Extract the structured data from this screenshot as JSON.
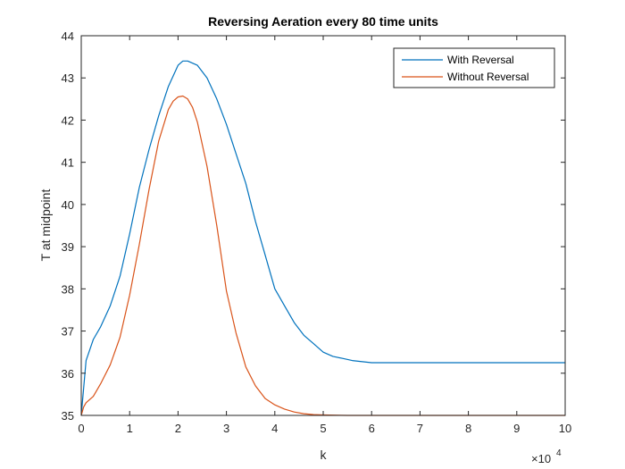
{
  "chart_data": {
    "type": "line",
    "title": "Reversing Aeration every 80 time units",
    "xlabel": "k",
    "ylabel": "T at midpoint",
    "x_exponent_base": "×10",
    "x_exponent_power": "4",
    "xlim": [
      0,
      100000
    ],
    "ylim": [
      35,
      44
    ],
    "xticks": [
      0,
      10000,
      20000,
      30000,
      40000,
      50000,
      60000,
      70000,
      80000,
      90000,
      100000
    ],
    "xtick_labels": [
      "0",
      "1",
      "2",
      "3",
      "4",
      "5",
      "6",
      "7",
      "8",
      "9",
      "10"
    ],
    "yticks": [
      35,
      36,
      37,
      38,
      39,
      40,
      41,
      42,
      43,
      44
    ],
    "ytick_labels": [
      "35",
      "36",
      "37",
      "38",
      "39",
      "40",
      "41",
      "42",
      "43",
      "44"
    ],
    "grid": false,
    "legend_position": "top-right",
    "series": [
      {
        "name": "With Reversal",
        "color": "#0072BD",
        "x": [
          0,
          1000,
          2500,
          4000,
          6000,
          8000,
          10000,
          12000,
          14000,
          16000,
          18000,
          20000,
          21000,
          22000,
          24000,
          26000,
          28000,
          30000,
          32000,
          34000,
          36000,
          38000,
          40000,
          42000,
          44000,
          46000,
          48000,
          50000,
          52000,
          54000,
          56000,
          60000,
          70000,
          80000,
          90000,
          100000
        ],
        "y": [
          35.0,
          36.3,
          36.8,
          37.1,
          37.6,
          38.3,
          39.3,
          40.4,
          41.3,
          42.1,
          42.8,
          43.3,
          43.4,
          43.4,
          43.3,
          43.0,
          42.5,
          41.9,
          41.2,
          40.5,
          39.6,
          38.8,
          38.0,
          37.6,
          37.2,
          36.9,
          36.7,
          36.5,
          36.4,
          36.35,
          36.3,
          36.25,
          36.25,
          36.25,
          36.25,
          36.25
        ]
      },
      {
        "name": "Without Reversal",
        "color": "#D95319",
        "x": [
          0,
          500,
          1000,
          2500,
          4000,
          6000,
          8000,
          10000,
          12000,
          14000,
          16000,
          18000,
          19000,
          20000,
          21000,
          22000,
          23000,
          24000,
          26000,
          28000,
          30000,
          32000,
          34000,
          36000,
          38000,
          40000,
          42000,
          44000,
          46000,
          48000,
          50000,
          55000,
          60000,
          70000,
          80000,
          90000,
          100000
        ],
        "y": [
          35.0,
          35.2,
          35.3,
          35.45,
          35.75,
          36.2,
          36.85,
          37.85,
          39.05,
          40.35,
          41.5,
          42.25,
          42.45,
          42.55,
          42.57,
          42.5,
          42.3,
          41.95,
          40.9,
          39.5,
          37.95,
          36.95,
          36.15,
          35.7,
          35.4,
          35.25,
          35.15,
          35.08,
          35.04,
          35.02,
          35.01,
          35.0,
          35.0,
          35.0,
          35.0,
          35.0,
          35.0
        ]
      }
    ]
  }
}
